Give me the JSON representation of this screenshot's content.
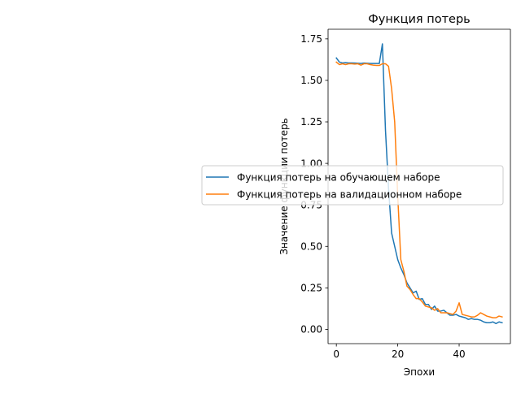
{
  "chart_data": {
    "type": "line",
    "title": "Функция потерь",
    "xlabel": "Эпохи",
    "ylabel": "Значение функции потерь",
    "xlim": [
      -2.7,
      56.7
    ],
    "ylim": [
      -0.086,
      1.808
    ],
    "xticks": [
      0,
      20,
      40
    ],
    "yticks": [
      0.0,
      0.25,
      0.5,
      0.75,
      1.0,
      1.25,
      1.5,
      1.75
    ],
    "xtick_labels": [
      "0",
      "20",
      "40"
    ],
    "ytick_labels": [
      "0.00",
      "0.25",
      "0.50",
      "0.75",
      "1.00",
      "1.25",
      "1.50",
      "1.75"
    ],
    "grid": false,
    "legend_position": "center",
    "series": [
      {
        "name": "Функция потерь на обучающем наборе",
        "color": "#1f77b4",
        "x": [
          0,
          1,
          2,
          3,
          4,
          5,
          6,
          7,
          8,
          9,
          10,
          11,
          12,
          13,
          14,
          15,
          16,
          17,
          18,
          19,
          20,
          21,
          22,
          23,
          24,
          25,
          26,
          27,
          28,
          29,
          30,
          31,
          32,
          33,
          34,
          35,
          36,
          37,
          38,
          39,
          40,
          41,
          42,
          43,
          44,
          45,
          46,
          47,
          48,
          49,
          50,
          51,
          52,
          53,
          54
        ],
        "values": [
          1.635,
          1.61,
          1.605,
          1.607,
          1.605,
          1.605,
          1.604,
          1.603,
          1.602,
          1.604,
          1.603,
          1.602,
          1.602,
          1.602,
          1.602,
          1.72,
          1.2,
          0.85,
          0.58,
          0.5,
          0.42,
          0.37,
          0.33,
          0.28,
          0.25,
          0.22,
          0.23,
          0.18,
          0.185,
          0.15,
          0.15,
          0.12,
          0.14,
          0.11,
          0.11,
          0.115,
          0.1,
          0.085,
          0.085,
          0.09,
          0.08,
          0.075,
          0.07,
          0.06,
          0.065,
          0.06,
          0.06,
          0.055,
          0.045,
          0.04,
          0.04,
          0.045,
          0.035,
          0.045,
          0.04
        ]
      },
      {
        "name": "Функция потерь на валидационном наборе",
        "color": "#ff7f0e",
        "x": [
          0,
          1,
          2,
          3,
          4,
          5,
          6,
          7,
          8,
          9,
          10,
          11,
          12,
          13,
          14,
          15,
          16,
          17,
          18,
          19,
          20,
          21,
          22,
          23,
          24,
          25,
          26,
          27,
          28,
          29,
          30,
          31,
          32,
          33,
          34,
          35,
          36,
          37,
          38,
          39,
          40,
          41,
          42,
          43,
          44,
          45,
          46,
          47,
          48,
          49,
          50,
          51,
          52,
          53,
          54
        ],
        "values": [
          1.61,
          1.595,
          1.6,
          1.595,
          1.6,
          1.6,
          1.598,
          1.6,
          1.592,
          1.6,
          1.6,
          1.595,
          1.592,
          1.59,
          1.59,
          1.6,
          1.6,
          1.585,
          1.45,
          1.25,
          0.8,
          0.42,
          0.35,
          0.26,
          0.24,
          0.21,
          0.185,
          0.185,
          0.165,
          0.14,
          0.135,
          0.13,
          0.115,
          0.125,
          0.1,
          0.1,
          0.1,
          0.095,
          0.09,
          0.11,
          0.16,
          0.09,
          0.085,
          0.08,
          0.075,
          0.075,
          0.085,
          0.1,
          0.09,
          0.08,
          0.075,
          0.07,
          0.07,
          0.08,
          0.075
        ]
      }
    ]
  }
}
